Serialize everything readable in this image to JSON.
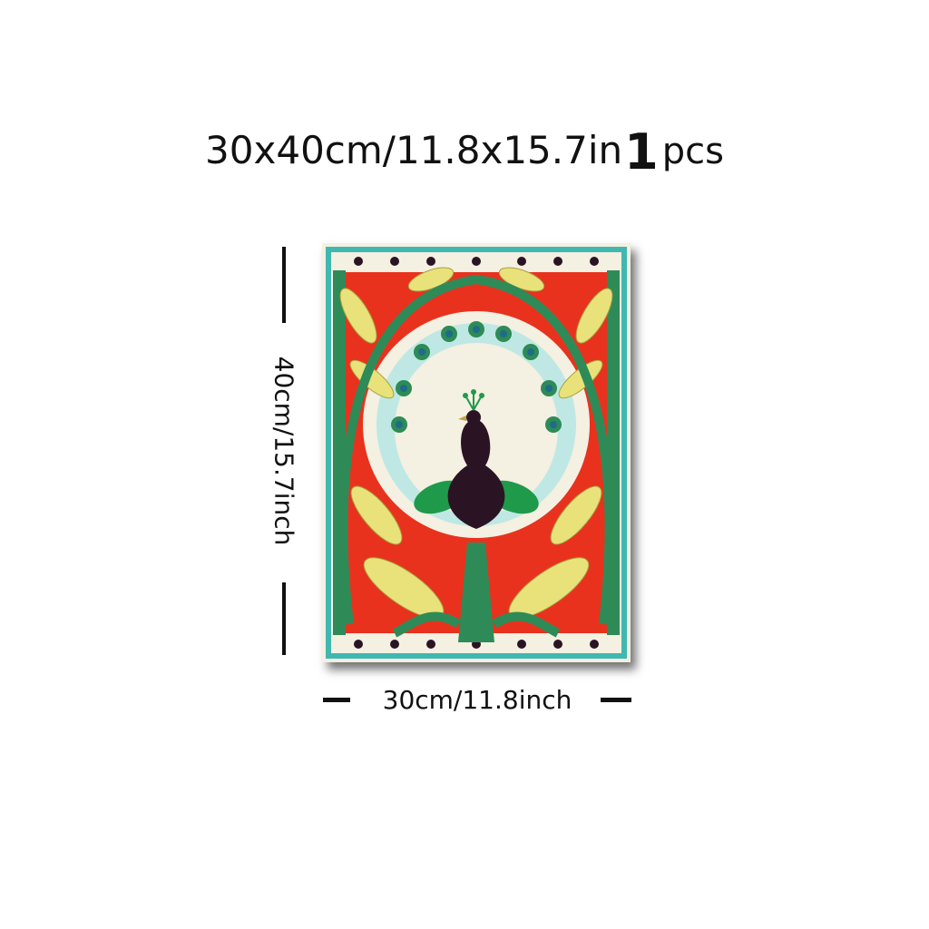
{
  "title": {
    "size_text": "30x40cm/11.8x15.7in",
    "quantity": "1",
    "quantity_unit": "pcs"
  },
  "dimensions": {
    "height_label": "40cm/15.7inch",
    "width_label": "30cm/11.8inch"
  },
  "artwork": {
    "subject": "peacock-icon",
    "colors": {
      "border_green": "#2e8b57",
      "background_red": "#e8321e",
      "leaf_yellow": "#e9e27a",
      "teal": "#3fb8b0",
      "body_dark": "#2a1424",
      "cream": "#f4f0e2"
    }
  }
}
